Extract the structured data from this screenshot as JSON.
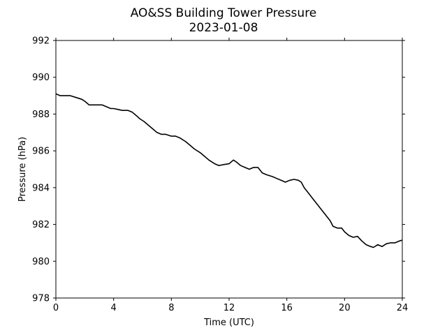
{
  "chart_data": {
    "type": "line",
    "title": "AO&SS Building Tower Pressure",
    "subtitle": "2023-01-08",
    "xlabel": "Time (UTC)",
    "ylabel": "Pressure (hPa)",
    "xlim": [
      0,
      24
    ],
    "ylim": [
      978,
      992
    ],
    "xticks": [
      0,
      4,
      8,
      12,
      16,
      20,
      24
    ],
    "yticks": [
      978,
      980,
      982,
      984,
      986,
      988,
      990,
      992
    ],
    "grid": false,
    "line_color": "#000000",
    "series": [
      {
        "x": [
          0,
          0.3,
          0.6,
          1.0,
          1.4,
          1.8,
          2.0,
          2.3,
          2.5,
          2.8,
          3.0,
          3.2,
          3.5,
          3.8,
          4.0,
          4.3,
          4.6,
          5.0,
          5.3,
          5.6,
          5.8,
          6.1,
          6.4,
          6.7,
          7.0,
          7.3,
          7.6,
          8.0,
          8.3,
          8.6,
          9.0,
          9.3,
          9.6,
          10.0,
          10.3,
          10.6,
          11.0,
          11.3,
          11.6,
          12.0,
          12.3,
          12.5,
          12.8,
          13.1,
          13.4,
          13.7,
          14.0,
          14.3,
          14.6,
          15.0,
          15.3,
          15.6,
          15.9,
          16.2,
          16.5,
          16.8,
          17.0,
          17.2,
          17.5,
          17.8,
          18.1,
          18.4,
          18.7,
          19.0,
          19.2,
          19.5,
          19.8,
          20.0,
          20.3,
          20.6,
          20.9,
          21.2,
          21.5,
          21.8,
          22.0,
          22.3,
          22.6,
          22.9,
          23.2,
          23.5,
          23.8,
          24.0
        ],
        "y": [
          989.1,
          989.0,
          989.0,
          989.0,
          988.9,
          988.8,
          988.7,
          988.5,
          988.5,
          988.5,
          988.5,
          988.5,
          988.4,
          988.3,
          988.3,
          988.25,
          988.2,
          988.2,
          988.1,
          987.9,
          987.75,
          987.6,
          987.4,
          987.2,
          987.0,
          986.9,
          986.9,
          986.8,
          986.8,
          986.7,
          986.5,
          986.3,
          986.1,
          985.9,
          985.7,
          985.5,
          985.3,
          985.2,
          985.25,
          985.3,
          985.5,
          985.4,
          985.2,
          985.1,
          985.0,
          985.1,
          985.1,
          984.8,
          984.7,
          984.6,
          984.5,
          984.4,
          984.3,
          984.4,
          984.45,
          984.4,
          984.3,
          984.0,
          983.7,
          983.4,
          983.1,
          982.8,
          982.5,
          982.2,
          981.9,
          981.8,
          981.8,
          981.6,
          981.4,
          981.3,
          981.35,
          981.1,
          980.9,
          980.8,
          980.75,
          980.9,
          980.8,
          980.95,
          981.0,
          981.0,
          981.1,
          981.15
        ]
      }
    ]
  }
}
